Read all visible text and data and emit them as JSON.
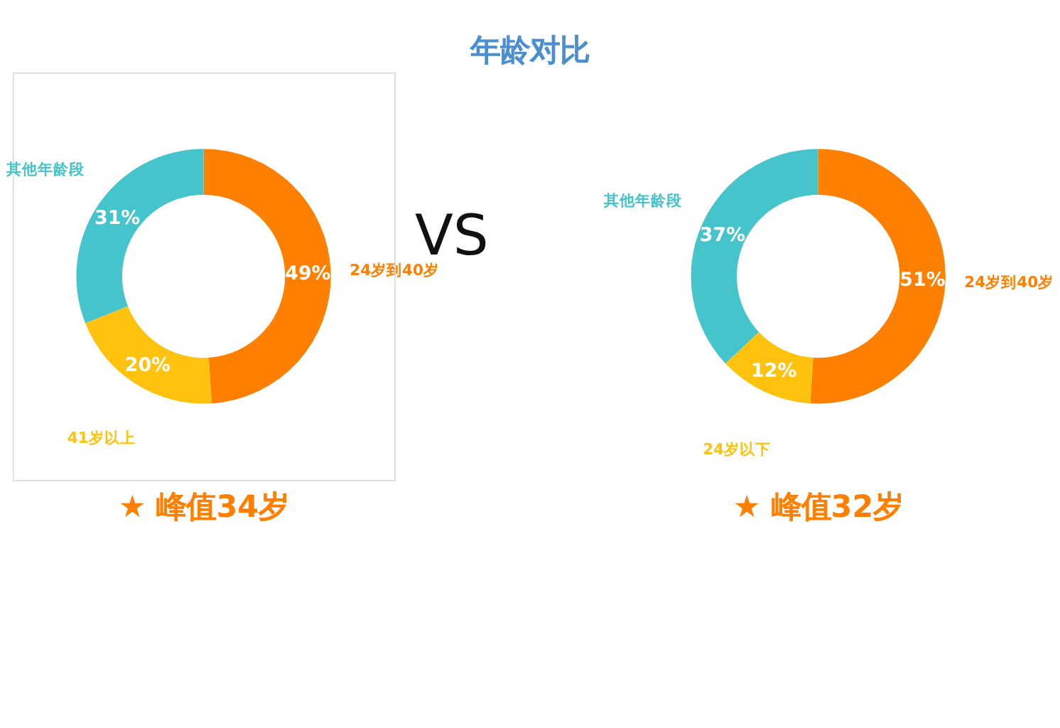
{
  "chart_data": [
    {
      "type": "donut",
      "title": "年龄对比",
      "categories": [
        "24岁到40岁",
        "41岁以上",
        "其他年龄段"
      ],
      "values": [
        49,
        20,
        31
      ],
      "colors": [
        "#ff7f00",
        "#ffc20e",
        "#45c4cc"
      ],
      "value_labels": [
        "49%",
        "20%",
        "31%"
      ],
      "annotations": [
        "VS",
        "★ 峰值34岁"
      ]
    },
    {
      "type": "donut",
      "categories": [
        "24岁到40岁",
        "24岁以下",
        "其他年龄段"
      ],
      "values": [
        51,
        12,
        37
      ],
      "colors": [
        "#ff7f00",
        "#ffc20e",
        "#45c4cc"
      ],
      "value_labels": [
        "51%",
        "12%",
        "37%"
      ],
      "annotations": [
        "★ 峰值32岁"
      ]
    }
  ]
}
